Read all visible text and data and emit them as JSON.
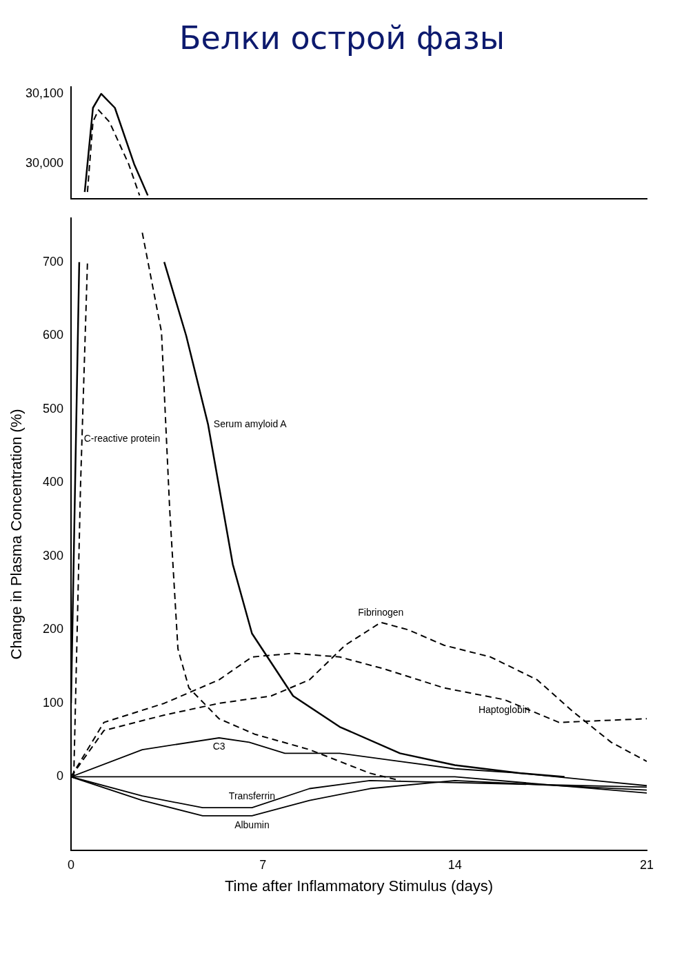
{
  "chart_data": [
    {
      "type": "line",
      "title": "Белки острой фазы",
      "xlim": [
        0,
        21
      ],
      "ylim": [
        29950,
        30110
      ],
      "xticks": [
        0,
        7,
        14,
        21
      ],
      "yticks": [
        {
          "value": 30000,
          "label": "30,000"
        },
        {
          "value": 30100,
          "label": "30,100"
        }
      ],
      "tick_labels": "y",
      "marker": "none",
      "series": [
        {
          "color": "#000000",
          "x": [
            0.5,
            0.8,
            1.1,
            1.6,
            2.3,
            2.8
          ],
          "values": [
            29960,
            30080,
            30100,
            30080,
            30000,
            29955
          ]
        },
        {
          "color": "#000000",
          "line_style": "dashed",
          "x": [
            0.6,
            0.8,
            1.0,
            1.4,
            2.1,
            2.5
          ],
          "values": [
            29960,
            30060,
            30077,
            30060,
            30000,
            29955
          ]
        }
      ]
    },
    {
      "type": "line",
      "xlabel": "Time after Inflammatory Stimulus (days)",
      "ylabel": "Change in Plasma Concentration (%)",
      "xlim": [
        0,
        21
      ],
      "ylim": [
        -100,
        760
      ],
      "xticks": [
        0,
        7,
        14,
        21
      ],
      "yticks": [
        0,
        100,
        200,
        300,
        400,
        500,
        600,
        700
      ],
      "marker": "none",
      "series": [
        {
          "name": "Serum amyloid A",
          "color": "#000000",
          "x": [
            0,
            0.15,
            0.3,
            0.45,
            1.5,
            3.2,
            3.4,
            4.2,
            5,
            5.9,
            6.6,
            8.1,
            9.8,
            12,
            14,
            16.4,
            18
          ],
          "values": [
            100,
            400,
            700,
            null,
            null,
            null,
            700,
            600,
            479,
            289,
            195,
            110,
            68,
            32,
            16,
            5,
            0
          ]
        },
        {
          "name": "C-reactive protein",
          "color": "#000000",
          "line_style": "dashed",
          "x": [
            0.1,
            0.35,
            0.6,
            0.7,
            1.5,
            2.4,
            2.6,
            3.3,
            3.6,
            3.9,
            4.3,
            5.4,
            6.7,
            8.7,
            10.9,
            12
          ],
          "values": [
            0,
            400,
            700,
            null,
            null,
            null,
            740,
            605,
            363,
            174,
            121,
            79,
            58,
            37,
            5,
            -5
          ]
        },
        {
          "name": "Haptoglobin",
          "color": "#000000",
          "line_style": "dashed",
          "x": [
            0,
            1.2,
            3.4,
            5.4,
            6.6,
            8.1,
            9.8,
            11.4,
            13.6,
            15.8,
            17.8,
            21
          ],
          "values": [
            0,
            74,
            100,
            132,
            163,
            168,
            163,
            147,
            121,
            105,
            74,
            79
          ]
        },
        {
          "name": "Fibrinogen",
          "color": "#000000",
          "line_style": "dashed",
          "x": [
            0,
            1.2,
            3.4,
            5.4,
            7.3,
            8.7,
            10,
            11.3,
            12.3,
            13.6,
            15.3,
            17,
            18.3,
            19.7,
            21
          ],
          "values": [
            0,
            63,
            84,
            100,
            110,
            132,
            179,
            210,
            200,
            179,
            163,
            132,
            89,
            47,
            21
          ]
        },
        {
          "name": "C3",
          "color": "#000000",
          "x": [
            0,
            2.6,
            5.4,
            6.5,
            7.8,
            9.8,
            12,
            14,
            16.4,
            19.1,
            21
          ],
          "values": [
            0,
            37,
            53,
            47,
            32,
            32,
            21,
            11,
            5,
            -5,
            -12
          ]
        },
        {
          "name": "Albumin",
          "color": "#000000",
          "x": [
            0,
            2.6,
            4.8,
            6.6,
            8.7,
            10.9,
            14,
            21
          ],
          "values": [
            0,
            -32,
            -53,
            -53,
            -32,
            -16,
            -5,
            -18
          ]
        },
        {
          "name": "Transferrin",
          "color": "#000000",
          "x": [
            0,
            2.6,
            4.8,
            6.6,
            8.7,
            10.9,
            21
          ],
          "values": [
            0,
            -26,
            -42,
            -42,
            -16,
            -5,
            -14
          ]
        },
        {
          "color": "#000000",
          "x": [
            0,
            14,
            21
          ],
          "values": [
            0,
            0,
            -22
          ]
        }
      ]
    }
  ]
}
